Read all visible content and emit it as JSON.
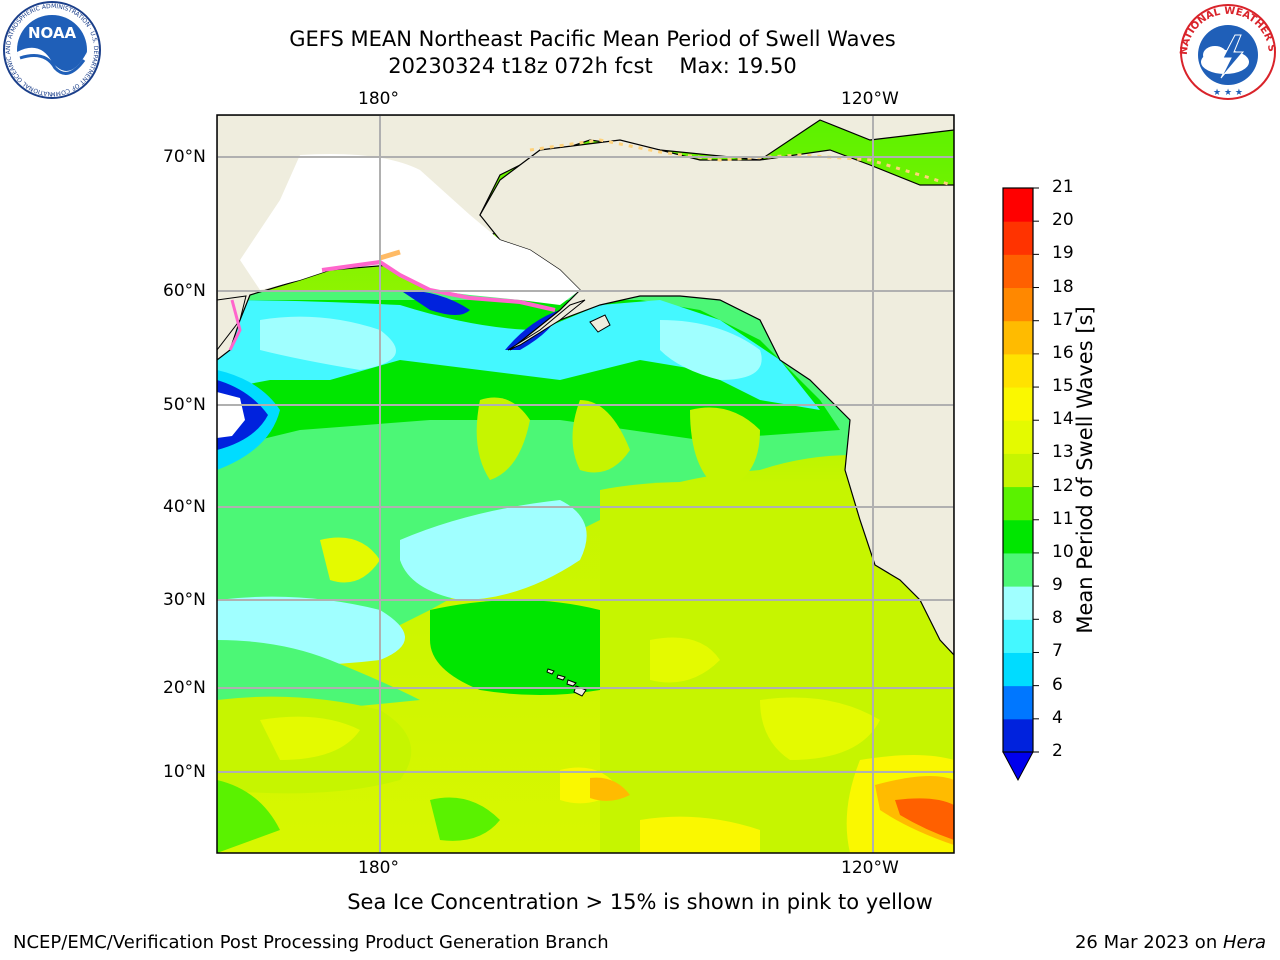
{
  "header": {
    "title_line1": "GEFS MEAN Northeast Pacific Mean Period of Swell Waves",
    "title_line2": "20230324 t18z 072h fcst    Max: 19.50"
  },
  "logos": {
    "left": {
      "text": "NOAA",
      "ring_text": "NATIONAL OCEANIC AND ATMOSPHERIC ADMINISTRATION · U.S. DEPARTMENT OF COMMERCE"
    },
    "right": {
      "ring_text": "NATIONAL WEATHER SERVICE"
    }
  },
  "map": {
    "lon_labels_top": [
      "180°",
      "120°W"
    ],
    "lon_labels_bottom": [
      "180°",
      "120°W"
    ],
    "lat_labels": [
      "70°N",
      "60°N",
      "50°N",
      "40°N",
      "30°N",
      "20°N",
      "10°N"
    ],
    "colors": {
      "land": "#efedde",
      "grid": "#b0b0b0",
      "ice": "#ff66cc"
    }
  },
  "colorbar": {
    "label": "Mean Period of Swell Waves [s]",
    "ticks": [
      "2",
      "4",
      "6",
      "7",
      "8",
      "9",
      "10",
      "11",
      "12",
      "13",
      "14",
      "15",
      "16",
      "17",
      "18",
      "19",
      "20",
      "21"
    ],
    "colors": [
      "#0022dd",
      "#0077ff",
      "#00dcff",
      "#44f8ff",
      "#a0ffff",
      "#4cf776",
      "#00e600",
      "#5af200",
      "#c6f500",
      "#e4fa00",
      "#faf800",
      "#ffe200",
      "#ffbb00",
      "#ff8800",
      "#ff6000",
      "#ff3300",
      "#ff0000"
    ],
    "extend_min_color": "#0000ee"
  },
  "notes": {
    "ice_note": "Sea Ice Concentration > 15% is shown in pink to yellow"
  },
  "footer": {
    "left": "NCEP/EMC/Verification Post Processing Product Generation Branch",
    "right_date": "26 Mar 2023 on ",
    "right_host": "Hera"
  }
}
